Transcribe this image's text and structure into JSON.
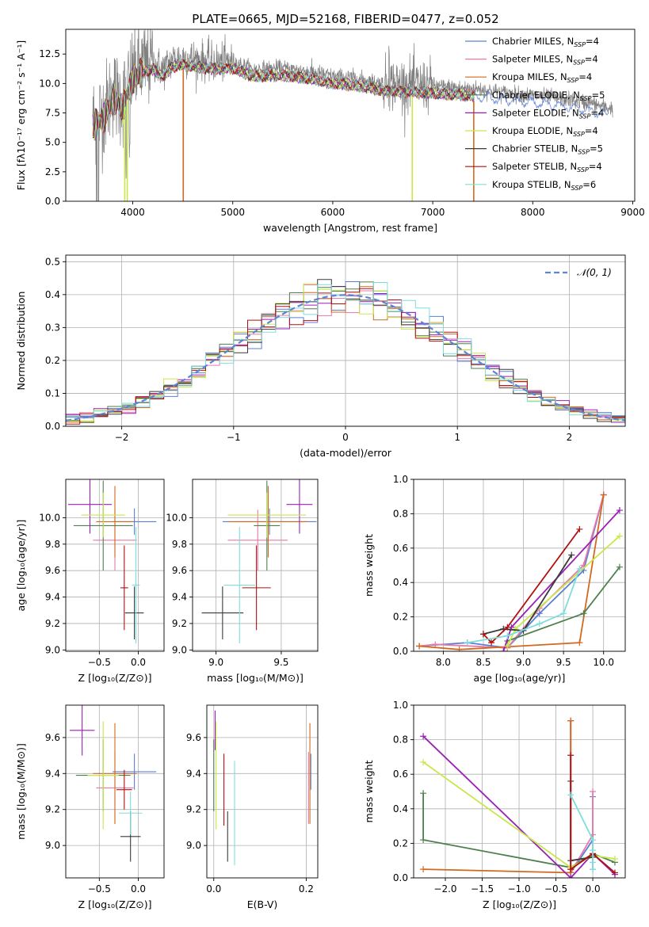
{
  "figure": {
    "title": "PLATE=0665, MJD=52168, FIBERID=0477, z=0.052"
  },
  "colors": {
    "Chabrier MILES": "#5b7fd6",
    "Salpeter MILES": "#e67aa8",
    "Kroupa MILES": "#d2691e",
    "Chabrier ELODIE": "#4f7f4f",
    "Salpeter ELODIE": "#9b1fb5",
    "Kroupa ELODIE": "#c8e84a",
    "Chabrier STELIB": "#3a3a3a",
    "Salpeter STELIB": "#b01010",
    "Kroupa STELIB": "#7fdedc",
    "data": "#808080",
    "gauss": "#5b86d6"
  },
  "chart_data": [
    {
      "id": "spectrum",
      "type": "line",
      "xlabel": "wavelength [Angstrom, rest frame]",
      "ylabel": "Flux [fλ10⁻¹⁷ erg cm⁻² s⁻¹ A⁻¹]",
      "xlim": [
        3330,
        9020
      ],
      "ylim": [
        0,
        14.6
      ],
      "xticks": [
        4000,
        5000,
        6000,
        7000,
        8000,
        9000
      ],
      "yticks": [
        0.0,
        2.5,
        5.0,
        7.5,
        10.0,
        12.5
      ],
      "ytick_labels": [
        "0.0",
        "2.5",
        "5.0",
        "7.5",
        "10.0",
        "12.5"
      ],
      "legend_position": "top-right",
      "legend": [
        {
          "name": "Chabrier MILES",
          "nssp": "4"
        },
        {
          "name": "Salpeter MILES",
          "nssp": "4"
        },
        {
          "name": "Kroupa MILES",
          "nssp": "4"
        },
        {
          "name": "Chabrier ELODIE",
          "nssp": "5"
        },
        {
          "name": "Salpeter ELODIE",
          "nssp": "4"
        },
        {
          "name": "Kroupa ELODIE",
          "nssp": "4"
        },
        {
          "name": "Chabrier STELIB",
          "nssp": "5"
        },
        {
          "name": "Salpeter STELIB",
          "nssp": "4"
        },
        {
          "name": "Kroupa STELIB",
          "nssp": "6"
        }
      ],
      "continuum": {
        "x": [
          3600,
          3700,
          3800,
          3900,
          4000,
          4100,
          4200,
          4300,
          4400,
          4500,
          4600,
          4800,
          5000,
          5200,
          5500,
          5800,
          6000,
          6200,
          6500,
          6800,
          7000,
          7300,
          7500,
          7800,
          8000,
          8300,
          8600,
          8750
        ],
        "y": [
          7.0,
          7.5,
          9.3,
          8.5,
          11.0,
          11.5,
          11.8,
          11.2,
          12.0,
          12.2,
          12.1,
          11.8,
          11.9,
          11.2,
          11.3,
          11.0,
          10.6,
          10.5,
          10.0,
          9.9,
          9.8,
          9.6,
          9.5,
          9.1,
          9.0,
          8.7,
          8.3,
          7.9
        ]
      },
      "model_spikes_x": [
        3920,
        3945,
        4505,
        6795,
        7410
      ],
      "data_x_range": [
        3600,
        8800
      ]
    },
    {
      "id": "residual_histogram",
      "type": "bar",
      "xlabel": "(data-model)/error",
      "ylabel": "Normed distribution",
      "xlim": [
        -2.5,
        2.5
      ],
      "ylim": [
        0,
        0.52
      ],
      "xticks": [
        -2,
        -1,
        0,
        1,
        2
      ],
      "xtick_labels": [
        "−2",
        "−1",
        "0",
        "1",
        "2"
      ],
      "yticks": [
        0.0,
        0.1,
        0.2,
        0.3,
        0.4,
        0.5
      ],
      "ytick_labels": [
        "0.0",
        "0.1",
        "0.2",
        "0.3",
        "0.4",
        "0.5"
      ],
      "grid": true,
      "legend_label": "𝒩(0, 1)",
      "legend_position": "top-right",
      "bins_start": -2.5,
      "bin_width": 0.125
    },
    {
      "id": "age_vs_Z",
      "type": "scatter",
      "xlabel": "Z [log₁₀(Z/Z⊙)]",
      "ylabel": "age  [log₁₀(age/yr)]",
      "xlim": [
        -0.93,
        0.33
      ],
      "ylim": [
        8.99,
        10.29
      ],
      "xticks": [
        -0.5,
        0.0
      ],
      "xtick_labels": [
        "−0.5",
        "0.0"
      ],
      "yticks": [
        9.0,
        9.2,
        9.4,
        9.6,
        9.8,
        10.0
      ],
      "ytick_labels": [
        "9.0",
        "9.2",
        "9.4",
        "9.6",
        "9.8",
        "10.0"
      ],
      "points": [
        {
          "model": "Chabrier MILES",
          "x": -0.05,
          "xerr": 0.28,
          "y": 9.97,
          "yerr": 0.1
        },
        {
          "model": "Salpeter MILES",
          "x": -0.3,
          "xerr": 0.28,
          "y": 9.83,
          "yerr": 0.23
        },
        {
          "model": "Kroupa MILES",
          "x": -0.3,
          "xerr": 0.24,
          "y": 9.97,
          "yerr": 0.27
        },
        {
          "model": "Chabrier ELODIE",
          "x": -0.45,
          "xerr": 0.38,
          "y": 9.94,
          "yerr": 0.34
        },
        {
          "model": "Salpeter ELODIE",
          "x": -0.62,
          "xerr": 0.28,
          "y": 10.1,
          "yerr": 0.22
        },
        {
          "model": "Kroupa ELODIE",
          "x": -0.45,
          "xerr": 0.28,
          "y": 10.02,
          "yerr": 0.17
        },
        {
          "model": "Chabrier STELIB",
          "x": -0.05,
          "xerr": 0.12,
          "y": 9.28,
          "yerr": 0.2
        },
        {
          "model": "Salpeter STELIB",
          "x": -0.18,
          "xerr": 0.05,
          "y": 9.47,
          "yerr": 0.32
        },
        {
          "model": "Kroupa STELIB",
          "x": -0.03,
          "xerr": 0.05,
          "y": 9.49,
          "yerr": 0.44
        }
      ]
    },
    {
      "id": "age_vs_mass",
      "type": "scatter",
      "xlabel": "mass [log₁₀(M/M⊙)]",
      "ylabel": "",
      "xlim": [
        8.82,
        9.78
      ],
      "ylim": [
        8.99,
        10.29
      ],
      "xticks": [
        9.0,
        9.5
      ],
      "xtick_labels": [
        "9.0",
        "9.5"
      ],
      "yticks": [
        9.0,
        9.2,
        9.4,
        9.6,
        9.8,
        10.0
      ],
      "ytick_labels": [
        "9.0",
        "9.2",
        "9.4",
        "9.6",
        "9.8",
        "10.0"
      ],
      "points": [
        {
          "model": "Chabrier MILES",
          "x": 9.41,
          "xerr": 0.36,
          "y": 9.97,
          "yerr": 0.1
        },
        {
          "model": "Salpeter MILES",
          "x": 9.32,
          "xerr": 0.23,
          "y": 9.83,
          "yerr": 0.23
        },
        {
          "model": "Kroupa MILES",
          "x": 9.4,
          "xerr": 0.3,
          "y": 9.97,
          "yerr": 0.27
        },
        {
          "model": "Chabrier ELODIE",
          "x": 9.39,
          "xerr": 0.1,
          "y": 9.94,
          "yerr": 0.34
        },
        {
          "model": "Salpeter ELODIE",
          "x": 9.64,
          "xerr": 0.1,
          "y": 10.1,
          "yerr": 0.22
        },
        {
          "model": "Kroupa ELODIE",
          "x": 9.39,
          "xerr": 0.3,
          "y": 10.02,
          "yerr": 0.17
        },
        {
          "model": "Chabrier STELIB",
          "x": 9.05,
          "xerr": 0.16,
          "y": 9.28,
          "yerr": 0.2
        },
        {
          "model": "Salpeter STELIB",
          "x": 9.31,
          "xerr": 0.11,
          "y": 9.47,
          "yerr": 0.32
        },
        {
          "model": "Kroupa STELIB",
          "x": 9.18,
          "xerr": 0.12,
          "y": 9.49,
          "yerr": 0.44
        }
      ]
    },
    {
      "id": "weight_vs_age",
      "type": "line",
      "xlabel": "age  [log₁₀(age/yr)]",
      "ylabel": "mass weight",
      "xlim": [
        7.63,
        10.27
      ],
      "ylim": [
        0,
        1.0
      ],
      "xticks": [
        8.0,
        8.5,
        9.0,
        9.5,
        10.0
      ],
      "xtick_labels": [
        "8.0",
        "8.5",
        "9.0",
        "9.5",
        "10.0"
      ],
      "yticks": [
        0.0,
        0.2,
        0.4,
        0.6,
        0.8,
        1.0
      ],
      "ytick_labels": [
        "0.0",
        "0.2",
        "0.4",
        "0.6",
        "0.8",
        "1.0"
      ],
      "grid": true,
      "series": [
        {
          "model": "Chabrier MILES",
          "x": [
            7.7,
            8.3,
            8.8,
            9.2,
            9.75,
            10.0
          ],
          "y": [
            0.03,
            0.05,
            0.02,
            0.22,
            0.47,
            0.91
          ]
        },
        {
          "model": "Salpeter MILES",
          "x": [
            7.7,
            7.9,
            8.8,
            9.2,
            9.75,
            10.0
          ],
          "y": [
            0.03,
            0.04,
            0.02,
            0.25,
            0.5,
            0.91
          ]
        },
        {
          "model": "Kroupa MILES",
          "x": [
            7.7,
            8.2,
            9.7,
            10.0
          ],
          "y": [
            0.03,
            0.01,
            0.05,
            0.91
          ]
        },
        {
          "model": "Chabrier ELODIE",
          "x": [
            8.8,
            9.75,
            10.2
          ],
          "y": [
            0.06,
            0.22,
            0.49
          ]
        },
        {
          "model": "Salpeter ELODIE",
          "x": [
            8.75,
            8.85,
            10.2
          ],
          "y": [
            0.0,
            0.14,
            0.82
          ]
        },
        {
          "model": "Kroupa ELODIE",
          "x": [
            8.8,
            8.9,
            10.2
          ],
          "y": [
            0.03,
            0.13,
            0.67
          ]
        },
        {
          "model": "Chabrier STELIB",
          "x": [
            8.5,
            8.75,
            9.0,
            9.6
          ],
          "y": [
            0.1,
            0.13,
            0.12,
            0.56
          ]
        },
        {
          "model": "Salpeter STELIB",
          "x": [
            8.5,
            8.6,
            8.8,
            9.7
          ],
          "y": [
            0.1,
            0.05,
            0.14,
            0.71
          ]
        },
        {
          "model": "Kroupa STELIB",
          "x": [
            8.3,
            8.8,
            9.2,
            9.5,
            9.7
          ],
          "y": [
            0.05,
            0.09,
            0.16,
            0.22,
            0.48
          ]
        }
      ]
    },
    {
      "id": "mass_vs_Z",
      "type": "scatter",
      "xlabel": "Z [log₁₀(Z/Z⊙)]",
      "ylabel": "mass [log₁₀(M/M⊙)]",
      "xlim": [
        -0.93,
        0.33
      ],
      "ylim": [
        8.82,
        9.78
      ],
      "xticks": [
        -0.5,
        0.0
      ],
      "xtick_labels": [
        "−0.5",
        "0.0"
      ],
      "yticks": [
        9.0,
        9.2,
        9.4,
        9.6
      ],
      "ytick_labels": [
        "9.0",
        "9.2",
        "9.4",
        "9.6"
      ],
      "points": [
        {
          "model": "Chabrier MILES",
          "x": -0.05,
          "xerr": 0.28,
          "y": 9.41,
          "yerr": 0.1
        },
        {
          "model": "Salpeter MILES",
          "x": -0.3,
          "xerr": 0.24,
          "y": 9.32,
          "yerr": 0.2
        },
        {
          "model": "Kroupa MILES",
          "x": -0.3,
          "xerr": 0.28,
          "y": 9.4,
          "yerr": 0.28
        },
        {
          "model": "Chabrier ELODIE",
          "x": -0.45,
          "xerr": 0.35,
          "y": 9.39,
          "yerr": 0.2
        },
        {
          "model": "Salpeter ELODIE",
          "x": -0.72,
          "xerr": 0.16,
          "y": 9.64,
          "yerr": 0.14
        },
        {
          "model": "Kroupa ELODIE",
          "x": -0.45,
          "xerr": 0.2,
          "y": 9.39,
          "yerr": 0.3
        },
        {
          "model": "Chabrier STELIB",
          "x": -0.1,
          "xerr": 0.13,
          "y": 9.05,
          "yerr": 0.14
        },
        {
          "model": "Salpeter STELIB",
          "x": -0.18,
          "xerr": 0.1,
          "y": 9.31,
          "yerr": 0.11
        },
        {
          "model": "Kroupa STELIB",
          "x": -0.1,
          "xerr": 0.15,
          "y": 9.18,
          "yerr": 0.12
        }
      ]
    },
    {
      "id": "mass_vs_ebv",
      "type": "scatter",
      "xlabel": "E(B-V)",
      "ylabel": "",
      "xlim": [
        -0.015,
        0.225
      ],
      "ylim": [
        8.82,
        9.78
      ],
      "xticks": [
        0.0,
        0.2
      ],
      "xtick_labels": [
        "0.0",
        "0.2"
      ],
      "yticks": [
        9.0,
        9.2,
        9.4,
        9.6
      ],
      "ytick_labels": [
        "9.0",
        "9.2",
        "9.4",
        "9.6"
      ],
      "points": [
        {
          "model": "Chabrier MILES",
          "x": 0.21,
          "y": 9.41,
          "yerr": 0.1
        },
        {
          "model": "Salpeter MILES",
          "x": 0.205,
          "y": 9.32,
          "yerr": 0.2
        },
        {
          "model": "Kroupa MILES",
          "x": 0.208,
          "y": 9.4,
          "yerr": 0.28
        },
        {
          "model": "Chabrier ELODIE",
          "x": 0.0,
          "y": 9.39,
          "yerr": 0.2
        },
        {
          "model": "Salpeter ELODIE",
          "x": 0.003,
          "y": 9.64,
          "yerr": 0.11
        },
        {
          "model": "Kroupa ELODIE",
          "x": 0.005,
          "y": 9.39,
          "yerr": 0.3
        },
        {
          "model": "Chabrier STELIB",
          "x": 0.03,
          "y": 9.05,
          "yerr": 0.14
        },
        {
          "model": "Salpeter STELIB",
          "x": 0.022,
          "y": 9.31,
          "yerr": 0.2
        },
        {
          "model": "Kroupa STELIB",
          "x": 0.045,
          "y": 9.18,
          "yerr": 0.29
        }
      ]
    },
    {
      "id": "weight_vs_Z",
      "type": "line",
      "xlabel": "Z [log₁₀(Z/Z⊙)]",
      "ylabel": "mass weight",
      "xlim": [
        -2.43,
        0.44
      ],
      "ylim": [
        0,
        1.0
      ],
      "xticks": [
        -2.0,
        -1.5,
        -1.0,
        -0.5,
        0.0
      ],
      "xtick_labels": [
        "−2.0",
        "−1.5",
        "−1.0",
        "−0.5",
        "0.0"
      ],
      "yticks": [
        0.0,
        0.2,
        0.4,
        0.6,
        0.8,
        1.0
      ],
      "ytick_labels": [
        "0.0",
        "0.2",
        "0.4",
        "0.6",
        "0.8",
        "1.0"
      ],
      "grid": true,
      "series": [
        {
          "model": "Chabrier MILES",
          "x": [
            -0.3,
            -0.3,
            0.0,
            0.0,
            0.0
          ],
          "y": [
            0.91,
            0.03,
            0.22,
            0.47,
            0.05
          ]
        },
        {
          "model": "Salpeter MILES",
          "x": [
            -0.3,
            -0.3,
            0.0,
            0.0
          ],
          "y": [
            0.91,
            0.03,
            0.25,
            0.5
          ]
        },
        {
          "model": "Kroupa MILES",
          "x": [
            -2.3,
            -0.3,
            -0.3,
            -0.3
          ],
          "y": [
            0.05,
            0.03,
            0.05,
            0.91
          ]
        },
        {
          "model": "Chabrier ELODIE",
          "x": [
            -2.3,
            -2.3,
            -0.3,
            0.0,
            0.3
          ],
          "y": [
            0.49,
            0.22,
            0.06,
            0.14,
            0.09
          ]
        },
        {
          "model": "Salpeter ELODIE",
          "x": [
            -2.3,
            -0.3,
            0.0,
            0.3
          ],
          "y": [
            0.82,
            0.0,
            0.14,
            0.02
          ]
        },
        {
          "model": "Kroupa ELODIE",
          "x": [
            -2.3,
            -0.3,
            0.0,
            0.3
          ],
          "y": [
            0.67,
            0.06,
            0.13,
            0.11
          ]
        },
        {
          "model": "Chabrier STELIB",
          "x": [
            -0.3,
            -0.3,
            0.0,
            0.0
          ],
          "y": [
            0.56,
            0.1,
            0.12,
            0.13
          ]
        },
        {
          "model": "Salpeter STELIB",
          "x": [
            -0.3,
            -0.3,
            0.0,
            0.3
          ],
          "y": [
            0.71,
            0.05,
            0.14,
            0.03
          ]
        },
        {
          "model": "Kroupa STELIB",
          "x": [
            -0.3,
            0.0,
            0.0,
            0.0,
            0.0
          ],
          "y": [
            0.48,
            0.22,
            0.16,
            0.09,
            0.05
          ]
        }
      ]
    }
  ]
}
